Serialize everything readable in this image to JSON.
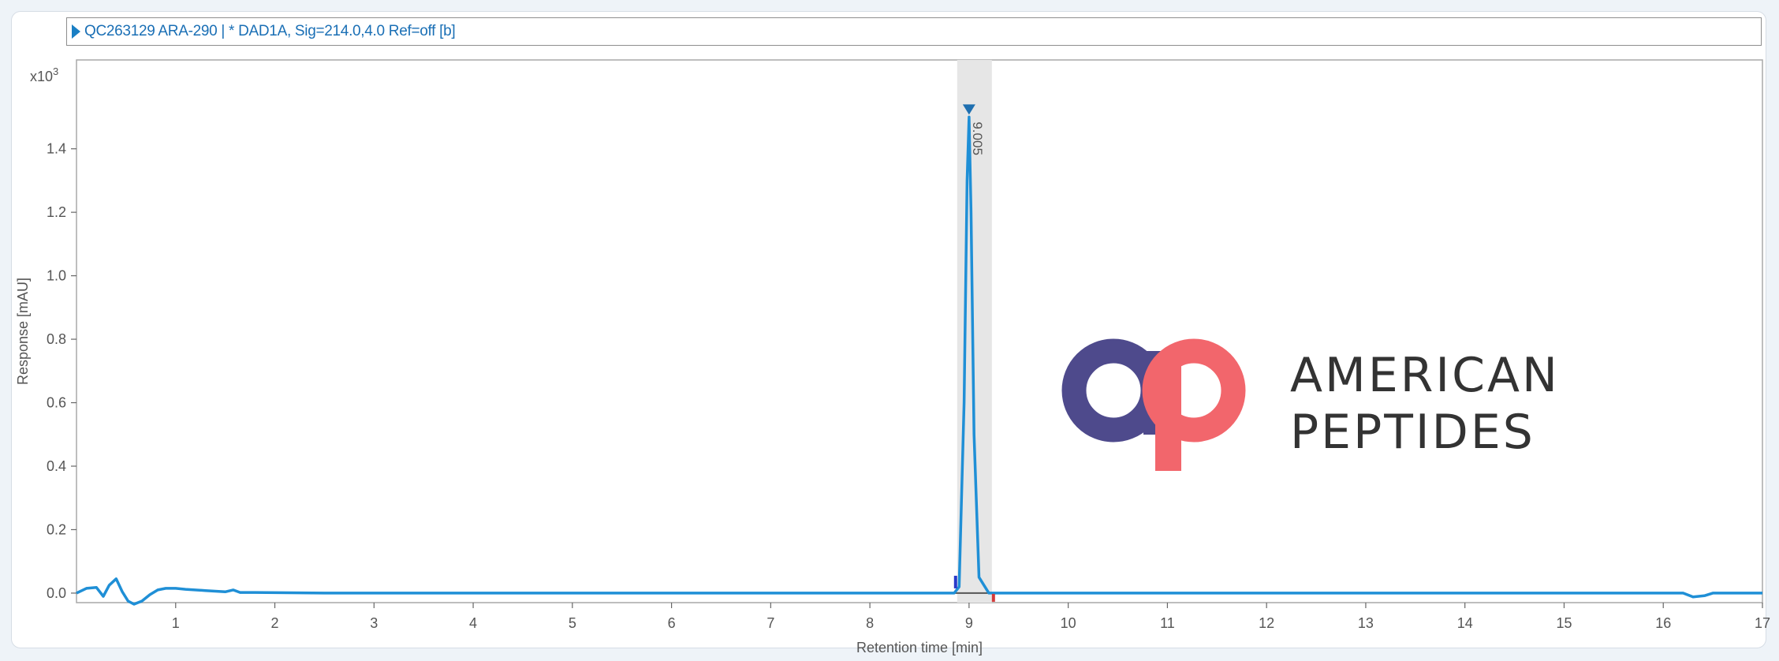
{
  "header": {
    "signal_label": "QC263129 ARA-290 | * DAD1A, Sig=214.0,4.0  Ref=off [b]"
  },
  "brand": {
    "line1": "AMERICAN",
    "line2": "PEPTIDES",
    "colors": {
      "a": "#4e4a8c",
      "p": "#f2666c",
      "text": "#333333"
    }
  },
  "chart_data": {
    "type": "line",
    "title": "",
    "xlabel": "Retention time [min]",
    "ylabel": "Response [mAU]",
    "y_multiplier": "x10",
    "y_exponent": "3",
    "xlim": [
      0,
      17
    ],
    "ylim": [
      -0.03,
      1.68
    ],
    "x_ticks": [
      1,
      2,
      3,
      4,
      5,
      6,
      7,
      8,
      9,
      10,
      11,
      12,
      13,
      14,
      15,
      16,
      17
    ],
    "y_ticks": [
      0.0,
      0.2,
      0.4,
      0.6,
      0.8,
      1.0,
      1.2,
      1.4
    ],
    "y_tick_labels": [
      "0.0",
      "0.2",
      "0.4",
      "0.6",
      "0.8",
      "1.0",
      "1.2",
      "1.4"
    ],
    "grid": false,
    "line_color": "#1f8fd6",
    "highlight": {
      "x_start": 8.88,
      "x_end": 9.23,
      "color": "#e6e6e6"
    },
    "peak_annotation": {
      "x": 9.0,
      "y": 1.53,
      "label": "9.005"
    },
    "series": [
      {
        "x": [
          0.0,
          0.1,
          0.2,
          0.27,
          0.33,
          0.4,
          0.46,
          0.52,
          0.58,
          0.66,
          0.74,
          0.82,
          0.9,
          1.0,
          1.1,
          1.3,
          1.5,
          1.58,
          1.65,
          1.8,
          2.5,
          5.0,
          8.85,
          8.9,
          8.95,
          8.98,
          9.0,
          9.02,
          9.05,
          9.1,
          9.2,
          10.0,
          13.0,
          16.2,
          16.3,
          16.42,
          16.5,
          16.7,
          17.0
        ],
        "y": [
          0.0,
          0.015,
          0.018,
          -0.01,
          0.025,
          0.045,
          0.005,
          -0.025,
          -0.035,
          -0.025,
          -0.005,
          0.01,
          0.015,
          0.015,
          0.012,
          0.008,
          0.004,
          0.01,
          0.002,
          0.002,
          0.0,
          0.0,
          0.0,
          0.02,
          0.6,
          1.3,
          1.5,
          1.2,
          0.5,
          0.05,
          0.0,
          0.0,
          0.0,
          0.0,
          -0.012,
          -0.008,
          0.0,
          0.0,
          0.0
        ]
      }
    ]
  }
}
